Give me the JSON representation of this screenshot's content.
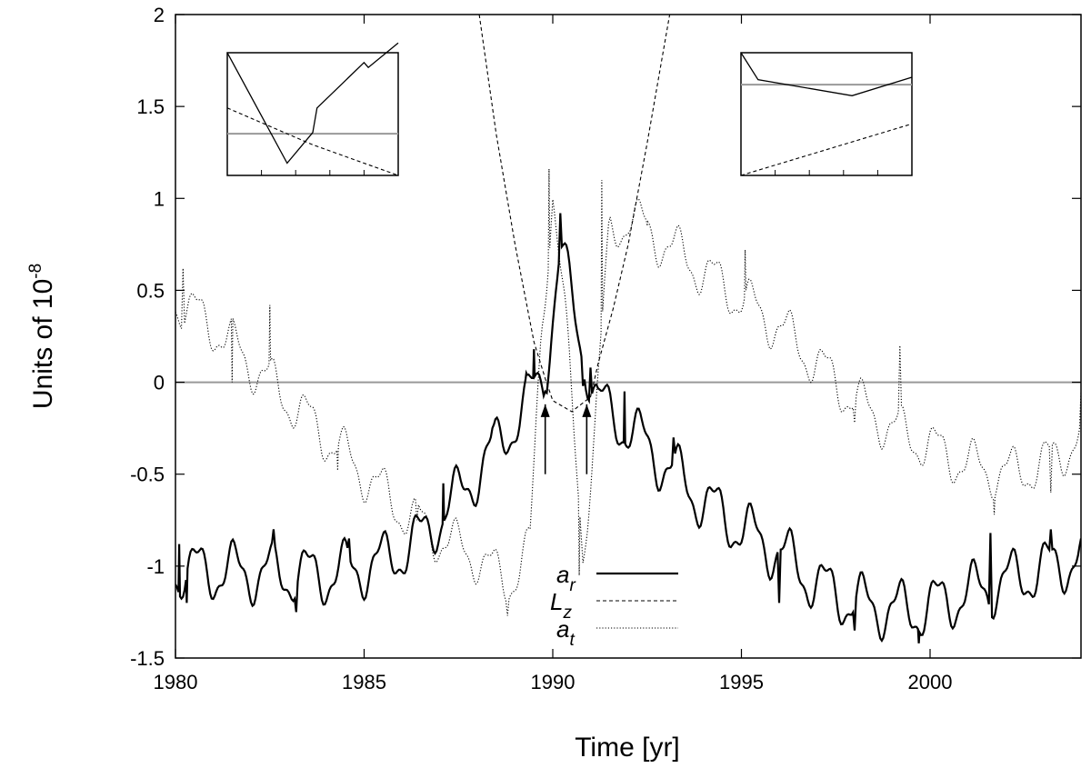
{
  "chart_data": {
    "type": "line",
    "title": "",
    "xlabel": "Time [yr]",
    "ylabel": "Units of 10",
    "ylabel_exponent": "-8",
    "xlim": [
      1980,
      2004
    ],
    "ylim": [
      -1.5,
      2
    ],
    "x_ticks": [
      "1980",
      "1985",
      "1990",
      "1995",
      "2000"
    ],
    "y_ticks": [
      "-1.5",
      "-1",
      "-0.5",
      "0",
      "0.5",
      "1",
      "1.5",
      "2"
    ],
    "grid": false,
    "zero_line": true,
    "legend": {
      "placement": "bottom-center",
      "entries": [
        {
          "base": "a",
          "sub": "r",
          "style": "solid"
        },
        {
          "base": "L",
          "sub": "z",
          "style": "dashed"
        },
        {
          "base": "a",
          "sub": "t",
          "style": "dotted"
        }
      ]
    },
    "series": [
      {
        "key": "ar",
        "style": "solid",
        "trend": [
          [
            1980,
            -1.02
          ],
          [
            1984,
            -1.05
          ],
          [
            1985.5,
            -0.98
          ],
          [
            1986.5,
            -0.85
          ],
          [
            1987.5,
            -0.62
          ],
          [
            1988.5,
            -0.35
          ],
          [
            1989.3,
            -0.12
          ],
          [
            1989.8,
            0.05
          ],
          [
            1990.2,
            0.72
          ],
          [
            1990.7,
            0.25
          ],
          [
            1991.2,
            -0.12
          ],
          [
            1992,
            -0.25
          ],
          [
            1993,
            -0.45
          ],
          [
            1994,
            -0.65
          ],
          [
            1995,
            -0.8
          ],
          [
            1996,
            -0.92
          ],
          [
            1997,
            -1.1
          ],
          [
            1998,
            -1.2
          ],
          [
            1999.5,
            -1.25
          ],
          [
            2001,
            -1.15
          ],
          [
            2002.5,
            -1.05
          ],
          [
            2004,
            -0.95
          ]
        ],
        "extremes": [
          [
            1980.1,
            -0.88
          ],
          [
            1980.3,
            -1.2
          ],
          [
            1982.6,
            -0.8
          ],
          [
            1983.2,
            -1.25
          ],
          [
            1984.6,
            -0.85
          ],
          [
            1987.1,
            -0.55
          ],
          [
            1988.4,
            -0.25
          ],
          [
            1989.3,
            0.05
          ],
          [
            1989.5,
            0.18
          ],
          [
            1989.8,
            -0.05
          ],
          [
            1990.2,
            0.92
          ],
          [
            1990.8,
            -0.02
          ],
          [
            1991,
            0.08
          ],
          [
            1991.9,
            -0.05
          ],
          [
            1993.2,
            -0.3
          ],
          [
            1996,
            -1.2
          ],
          [
            1998,
            -1.35
          ],
          [
            1999.7,
            -1.42
          ],
          [
            2001.6,
            -0.82
          ],
          [
            2003.2,
            -0.8
          ],
          [
            2004,
            -0.85
          ]
        ]
      },
      {
        "key": "Lz",
        "style": "dashed",
        "points": [
          [
            1988.05,
            2
          ],
          [
            1988.5,
            1.35
          ],
          [
            1989,
            0.75
          ],
          [
            1989.5,
            0.22
          ],
          [
            1989.8,
            0.02
          ],
          [
            1990,
            -0.1
          ],
          [
            1990.5,
            -0.16
          ],
          [
            1991,
            -0.08
          ],
          [
            1991.2,
            0.1
          ],
          [
            1991.6,
            0.4
          ],
          [
            1992,
            0.75
          ],
          [
            1992.5,
            1.3
          ],
          [
            1993.1,
            2
          ]
        ]
      },
      {
        "key": "at",
        "style": "dotted",
        "trend": [
          [
            1980,
            0.45
          ],
          [
            1981,
            0.3
          ],
          [
            1982,
            0.1
          ],
          [
            1983,
            -0.1
          ],
          [
            1984,
            -0.3
          ],
          [
            1985,
            -0.5
          ],
          [
            1986,
            -0.7
          ],
          [
            1987,
            -0.85
          ],
          [
            1988,
            -0.95
          ],
          [
            1988.8,
            -1.1
          ],
          [
            1989.4,
            -0.9
          ],
          [
            1989.7,
            0.3
          ],
          [
            1990,
            1.05
          ],
          [
            1990.3,
            0.4
          ],
          [
            1990.8,
            -0.9
          ],
          [
            1991.1,
            -0.3
          ],
          [
            1991.5,
            0.8
          ],
          [
            1992,
            0.9
          ],
          [
            1993,
            0.75
          ],
          [
            1994,
            0.6
          ],
          [
            1995,
            0.45
          ],
          [
            1996,
            0.3
          ],
          [
            1997,
            0.1
          ],
          [
            1998,
            -0.1
          ],
          [
            1999,
            -0.25
          ],
          [
            2000,
            -0.35
          ],
          [
            2001,
            -0.45
          ],
          [
            2002,
            -0.5
          ],
          [
            2003,
            -0.45
          ],
          [
            2004,
            -0.3
          ]
        ],
        "extremes": [
          [
            1980.2,
            0.62
          ],
          [
            1981.5,
            0.0
          ],
          [
            1982.5,
            0.42
          ],
          [
            1984.3,
            -0.48
          ],
          [
            1986.4,
            -0.75
          ],
          [
            1988.8,
            -1.27
          ],
          [
            1989.9,
            1.16
          ],
          [
            1990.7,
            -1.05
          ],
          [
            1991.3,
            1.1
          ],
          [
            1992.5,
            0.85
          ],
          [
            1995.1,
            0.72
          ],
          [
            1998,
            -0.22
          ],
          [
            1999.2,
            0.2
          ],
          [
            2001.7,
            -0.72
          ],
          [
            2003.2,
            -0.6
          ],
          [
            2004,
            -0.05
          ]
        ]
      }
    ],
    "markers": [
      {
        "x": 1989.8,
        "y_from": -0.5,
        "y_to": -0.12
      },
      {
        "x": 1990.9,
        "y_from": -0.5,
        "y_to": -0.12
      }
    ],
    "insets": [
      {
        "position": "top-left",
        "solid": [
          [
            0,
            1
          ],
          [
            0.7,
            0.1
          ],
          [
            1,
            0.35
          ],
          [
            1.05,
            0.55
          ],
          [
            1.6,
            0.92
          ],
          [
            1.65,
            0.88
          ],
          [
            2,
            1.08
          ]
        ],
        "dashed": [
          [
            0,
            0.55
          ],
          [
            1,
            0.25
          ],
          [
            2,
            0.0
          ]
        ],
        "gray_level": 0.34
      },
      {
        "position": "top-right",
        "solid": [
          [
            0,
            1
          ],
          [
            0.2,
            0.78
          ],
          [
            1.3,
            0.65
          ],
          [
            2,
            0.8
          ]
        ],
        "dashed": [
          [
            0,
            0.0
          ],
          [
            2,
            0.42
          ]
        ],
        "gray_level": 0.74
      }
    ]
  }
}
